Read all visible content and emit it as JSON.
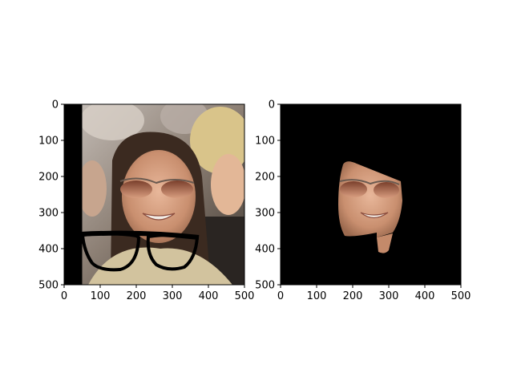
{
  "chart_data": [
    {
      "type": "image",
      "title": "",
      "xlabel": "",
      "ylabel": "",
      "xlim": [
        0,
        500
      ],
      "ylim": [
        500,
        0
      ],
      "xticks": [
        "0",
        "100",
        "200",
        "300",
        "400",
        "500"
      ],
      "yticks": [
        "0",
        "100",
        "200",
        "300",
        "400",
        "500"
      ],
      "image": {
        "content": "portrait-with-drawn-glasses",
        "background": "#6b6157",
        "black_border_x": [
          0,
          50
        ],
        "drawn_glasses_color": "#000000"
      }
    },
    {
      "type": "image",
      "title": "",
      "xlabel": "",
      "ylabel": "",
      "xlim": [
        0,
        500
      ],
      "ylim": [
        500,
        0
      ],
      "xticks": [
        "0",
        "100",
        "200",
        "300",
        "400",
        "500"
      ],
      "yticks": [
        "0",
        "100",
        "200",
        "300",
        "400",
        "500"
      ],
      "image": {
        "content": "segmented-face-mask",
        "background": "#000000",
        "face_region_x": [
          160,
          330
        ],
        "face_region_y": [
          160,
          420
        ]
      }
    }
  ]
}
